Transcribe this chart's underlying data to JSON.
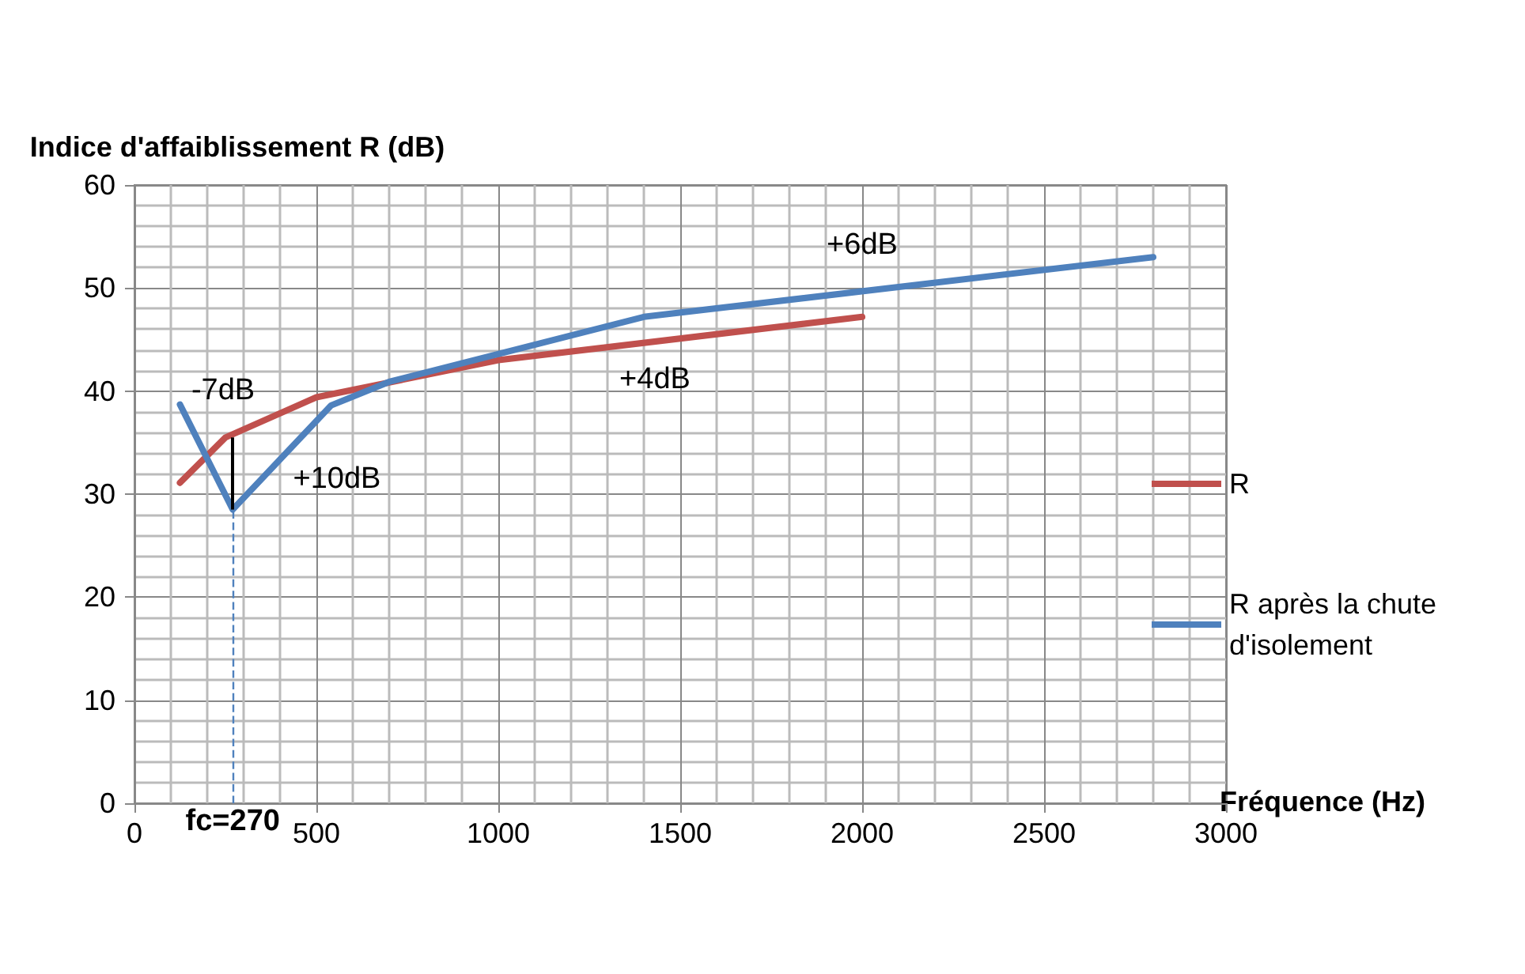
{
  "chart_data": {
    "type": "line",
    "xlabel": "Fréquence (Hz)",
    "ylabel": "Indice d'affaiblissement R (dB)",
    "xlim": [
      0,
      3000
    ],
    "xticks": [
      0,
      500,
      1000,
      1500,
      2000,
      2500,
      3000
    ],
    "ylim": [
      0,
      60
    ],
    "yticks": [
      0,
      10,
      20,
      30,
      40,
      50,
      60
    ],
    "grid": true,
    "legend": "right",
    "marker": "none",
    "line_style": "solid",
    "series": [
      {
        "name": "R",
        "color": "#c0504d",
        "x": [
          125,
          250,
          500,
          1000,
          2000
        ],
        "values": [
          31.1,
          35.5,
          39.4,
          43.0,
          47.2
        ]
      },
      {
        "name": "R après la chute d'isolement",
        "color": "#4f81bd",
        "x": [
          125,
          270,
          540,
          700,
          1400,
          2800
        ],
        "values": [
          38.7,
          28.5,
          38.6,
          40.9,
          47.2,
          53
        ]
      }
    ],
    "ref_lines": [
      {
        "axis": "x",
        "value": 270,
        "label": "fc=270",
        "color": "#4f81bd",
        "line_style": "dashed"
      }
    ],
    "annotations": [
      {
        "text": "-7dB",
        "x": 270,
        "y": 35.5
      },
      "+10dB",
      "+4dB",
      "+6dB"
    ]
  }
}
